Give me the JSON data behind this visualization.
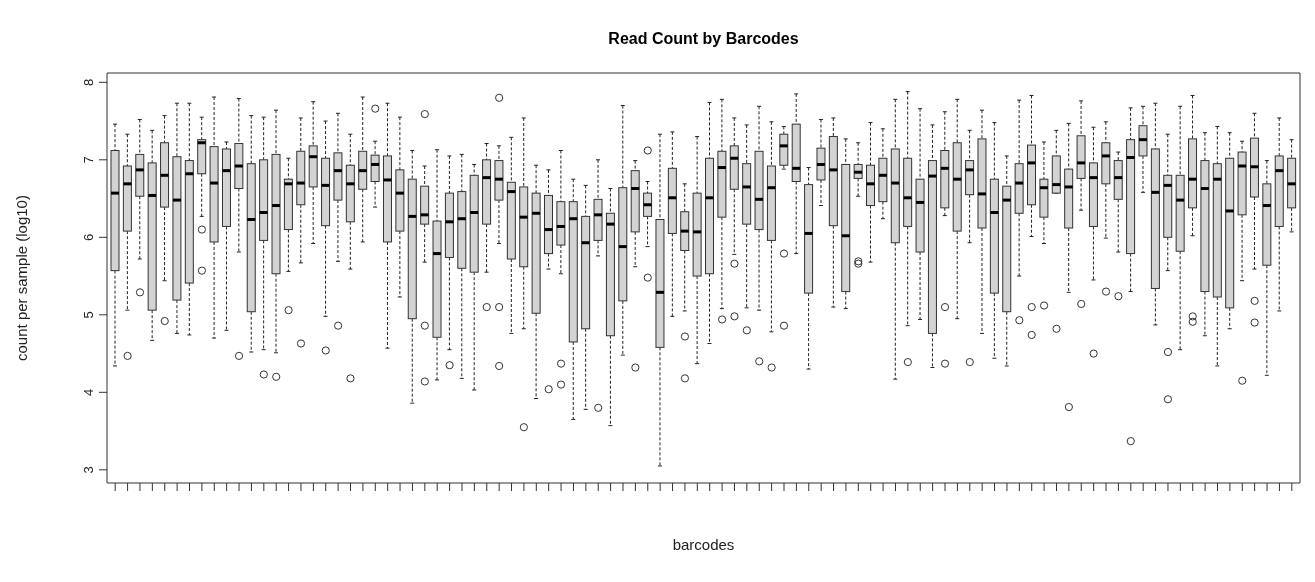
{
  "chart_data": {
    "type": "box",
    "title": "Read Count by Barcodes",
    "xlabel": "barcodes",
    "ylabel": "count per sample (log10)",
    "color": "#d3d3d3",
    "tick_labels": "y",
    "categories": [
      null,
      null,
      null,
      null,
      null,
      null,
      null,
      null,
      null,
      null,
      null,
      null,
      null,
      null,
      null,
      null,
      null,
      null,
      null,
      null,
      null,
      null,
      null,
      null,
      null,
      null,
      null,
      null,
      null,
      null,
      null,
      null,
      null,
      null,
      null,
      null,
      null,
      null,
      null,
      null,
      null,
      null,
      null,
      null,
      null,
      null,
      null,
      null,
      null,
      null,
      null,
      null,
      null,
      null,
      null,
      null,
      null,
      null,
      null,
      null,
      null,
      null,
      null,
      null,
      null,
      null,
      null,
      null,
      null,
      null,
      null,
      null,
      null,
      null,
      null,
      null,
      null,
      null,
      null,
      null,
      null,
      null,
      null,
      null,
      null,
      null,
      null,
      null,
      null,
      null,
      null,
      null,
      null,
      null,
      null,
      null
    ],
    "ylim": [
      2.83,
      8.12
    ],
    "yticks": [
      3,
      4,
      5,
      6,
      7,
      8
    ],
    "boxes": [
      {
        "low": 4.34,
        "q1": 5.57,
        "median": 6.57,
        "q3": 7.12,
        "high": 7.46
      },
      {
        "low": 5.06,
        "q1": 6.08,
        "median": 6.69,
        "q3": 6.92,
        "high": 7.33,
        "outliers": [
          4.47
        ]
      },
      {
        "low": 5.72,
        "q1": 6.53,
        "median": 6.87,
        "q3": 7.07,
        "high": 7.52,
        "outliers": [
          5.29
        ]
      },
      {
        "low": 4.67,
        "q1": 5.06,
        "median": 6.54,
        "q3": 6.96,
        "high": 7.38
      },
      {
        "low": 5.44,
        "q1": 6.39,
        "median": 6.8,
        "q3": 7.22,
        "high": 7.57,
        "outliers": [
          4.92
        ]
      },
      {
        "low": 4.76,
        "q1": 5.19,
        "median": 6.48,
        "q3": 7.04,
        "high": 7.73
      },
      {
        "low": 4.74,
        "q1": 5.41,
        "median": 6.82,
        "q3": 6.99,
        "high": 7.73
      },
      {
        "low": 6.27,
        "q1": 6.82,
        "median": 7.22,
        "q3": 7.26,
        "high": 7.55,
        "outliers": [
          6.1,
          5.57
        ]
      },
      {
        "low": 4.7,
        "q1": 5.94,
        "median": 6.7,
        "q3": 7.17,
        "high": 7.81
      },
      {
        "low": 4.8,
        "q1": 6.14,
        "median": 6.86,
        "q3": 7.14,
        "high": 7.23
      },
      {
        "low": 5.81,
        "q1": 6.63,
        "median": 6.92,
        "q3": 7.21,
        "high": 7.79,
        "outliers": [
          4.47
        ]
      },
      {
        "low": 4.52,
        "q1": 5.04,
        "median": 6.23,
        "q3": 6.95,
        "high": 7.57
      },
      {
        "low": 4.55,
        "q1": 5.96,
        "median": 6.32,
        "q3": 7.0,
        "high": 7.55,
        "outliers": [
          4.23
        ]
      },
      {
        "low": 4.51,
        "q1": 5.53,
        "median": 6.41,
        "q3": 7.07,
        "high": 7.64,
        "outliers": [
          4.2
        ]
      },
      {
        "low": 5.56,
        "q1": 6.1,
        "median": 6.69,
        "q3": 6.75,
        "high": 7.02,
        "outliers": [
          5.06
        ]
      },
      {
        "low": 5.67,
        "q1": 6.42,
        "median": 6.7,
        "q3": 7.11,
        "high": 7.54,
        "outliers": [
          4.63
        ]
      },
      {
        "low": 5.92,
        "q1": 6.65,
        "median": 7.04,
        "q3": 7.18,
        "high": 7.75
      },
      {
        "low": 4.98,
        "q1": 6.15,
        "median": 6.67,
        "q3": 7.02,
        "high": 7.5,
        "outliers": [
          4.54
        ]
      },
      {
        "low": 5.69,
        "q1": 6.48,
        "median": 6.86,
        "q3": 7.09,
        "high": 7.6,
        "outliers": [
          4.86
        ]
      },
      {
        "low": 5.59,
        "q1": 6.2,
        "median": 6.69,
        "q3": 6.93,
        "high": 7.33,
        "outliers": [
          4.18
        ]
      },
      {
        "low": 5.94,
        "q1": 6.62,
        "median": 6.86,
        "q3": 7.11,
        "high": 7.81
      },
      {
        "low": 6.39,
        "q1": 6.72,
        "median": 6.94,
        "q3": 7.06,
        "high": 7.24,
        "outliers": [
          7.66
        ]
      },
      {
        "low": 4.57,
        "q1": 5.94,
        "median": 6.74,
        "q3": 7.05,
        "high": 7.73
      },
      {
        "low": 5.23,
        "q1": 6.08,
        "median": 6.57,
        "q3": 6.87,
        "high": 7.55
      },
      {
        "low": 3.86,
        "q1": 4.95,
        "median": 6.27,
        "q3": 6.75,
        "high": 7.12
      },
      {
        "low": 5.68,
        "q1": 6.17,
        "median": 6.29,
        "q3": 6.66,
        "high": 6.92,
        "outliers": [
          7.59,
          4.86,
          4.14
        ]
      },
      {
        "low": 4.16,
        "q1": 4.71,
        "median": 5.79,
        "q3": 6.21,
        "high": 7.13
      },
      {
        "low": 4.55,
        "q1": 5.74,
        "median": 6.2,
        "q3": 6.57,
        "high": 7.05,
        "outliers": [
          4.35
        ]
      },
      {
        "low": 4.18,
        "q1": 5.6,
        "median": 6.24,
        "q3": 6.59,
        "high": 7.07
      },
      {
        "low": 4.03,
        "q1": 5.55,
        "median": 6.32,
        "q3": 6.8,
        "high": 6.94
      },
      {
        "low": 5.55,
        "q1": 6.17,
        "median": 6.77,
        "q3": 7.0,
        "high": 7.21,
        "outliers": [
          5.1
        ]
      },
      {
        "low": 5.92,
        "q1": 6.48,
        "median": 6.75,
        "q3": 6.99,
        "high": 7.18,
        "outliers": [
          7.8,
          5.1,
          4.34
        ]
      },
      {
        "low": 4.76,
        "q1": 5.72,
        "median": 6.59,
        "q3": 6.71,
        "high": 7.29
      },
      {
        "low": 4.82,
        "q1": 5.62,
        "median": 6.26,
        "q3": 6.65,
        "high": 7.54,
        "outliers": [
          3.55
        ]
      },
      {
        "low": 3.92,
        "q1": 5.02,
        "median": 6.31,
        "q3": 6.57,
        "high": 6.93
      },
      {
        "low": 5.59,
        "q1": 5.79,
        "median": 6.1,
        "q3": 6.54,
        "high": 6.87,
        "outliers": [
          4.04
        ]
      },
      {
        "low": 5.53,
        "q1": 5.9,
        "median": 6.14,
        "q3": 6.46,
        "high": 7.12,
        "outliers": [
          4.37,
          4.1
        ]
      },
      {
        "low": 3.65,
        "q1": 4.65,
        "median": 6.24,
        "q3": 6.46,
        "high": 6.75
      },
      {
        "low": 3.78,
        "q1": 4.82,
        "median": 5.93,
        "q3": 6.27,
        "high": 6.67
      },
      {
        "low": 5.76,
        "q1": 5.96,
        "median": 6.29,
        "q3": 6.49,
        "high": 7.0,
        "outliers": [
          3.8
        ]
      },
      {
        "low": 3.57,
        "q1": 4.73,
        "median": 6.17,
        "q3": 6.31,
        "high": 6.63
      },
      {
        "low": 4.48,
        "q1": 5.18,
        "median": 5.88,
        "q3": 6.64,
        "high": 7.7
      },
      {
        "low": 5.62,
        "q1": 6.07,
        "median": 6.63,
        "q3": 6.86,
        "high": 6.99,
        "outliers": [
          4.32
        ]
      },
      {
        "low": 5.88,
        "q1": 6.27,
        "median": 6.42,
        "q3": 6.57,
        "high": 6.72,
        "outliers": [
          7.12,
          5.48
        ]
      },
      {
        "low": 3.05,
        "q1": 4.58,
        "median": 5.29,
        "q3": 6.23,
        "high": 7.33
      },
      {
        "low": 4.98,
        "q1": 6.05,
        "median": 6.51,
        "q3": 6.89,
        "high": 7.36
      },
      {
        "low": 5.05,
        "q1": 5.83,
        "median": 6.08,
        "q3": 6.33,
        "high": 6.69,
        "outliers": [
          4.72,
          4.18
        ]
      },
      {
        "low": 4.37,
        "q1": 5.5,
        "median": 6.07,
        "q3": 6.57,
        "high": 7.3
      },
      {
        "low": 4.63,
        "q1": 5.53,
        "median": 6.51,
        "q3": 7.02,
        "high": 7.74
      },
      {
        "low": 5.08,
        "q1": 6.26,
        "median": 6.9,
        "q3": 7.11,
        "high": 7.78,
        "outliers": [
          4.94
        ]
      },
      {
        "low": 5.78,
        "q1": 6.62,
        "median": 7.02,
        "q3": 7.18,
        "high": 7.54,
        "outliers": [
          5.66,
          4.98
        ]
      },
      {
        "low": 5.09,
        "q1": 6.17,
        "median": 6.65,
        "q3": 6.95,
        "high": 7.45,
        "outliers": [
          4.8
        ]
      },
      {
        "low": 5.06,
        "q1": 6.1,
        "median": 6.49,
        "q3": 7.11,
        "high": 7.69,
        "outliers": [
          4.4
        ]
      },
      {
        "low": 4.78,
        "q1": 5.96,
        "median": 6.64,
        "q3": 6.92,
        "high": 7.49,
        "outliers": [
          4.32
        ]
      },
      {
        "low": 6.88,
        "q1": 6.93,
        "median": 7.18,
        "q3": 7.33,
        "high": 7.43,
        "outliers": [
          5.79,
          4.86
        ]
      },
      {
        "low": 5.79,
        "q1": 6.72,
        "median": 6.89,
        "q3": 7.46,
        "high": 7.85
      },
      {
        "low": 4.3,
        "q1": 5.28,
        "median": 6.05,
        "q3": 6.68,
        "high": 6.9
      },
      {
        "low": 6.41,
        "q1": 6.74,
        "median": 6.94,
        "q3": 7.15,
        "high": 7.52
      },
      {
        "low": 5.1,
        "q1": 6.15,
        "median": 6.87,
        "q3": 7.3,
        "high": 7.54
      },
      {
        "low": 5.08,
        "q1": 5.3,
        "median": 6.02,
        "q3": 6.94,
        "high": 7.27
      },
      {
        "low": 6.53,
        "q1": 6.76,
        "median": 6.84,
        "q3": 6.94,
        "high": 7.22,
        "outliers": [
          5.69,
          5.66
        ]
      },
      {
        "low": 5.68,
        "q1": 6.41,
        "median": 6.69,
        "q3": 6.93,
        "high": 7.48
      },
      {
        "low": 6.24,
        "q1": 6.46,
        "median": 6.8,
        "q3": 7.02,
        "high": 7.4
      },
      {
        "low": 4.17,
        "q1": 5.93,
        "median": 6.7,
        "q3": 7.14,
        "high": 7.78
      },
      {
        "low": 4.86,
        "q1": 6.14,
        "median": 6.51,
        "q3": 7.02,
        "high": 7.88,
        "outliers": [
          4.39
        ]
      },
      {
        "low": 4.94,
        "q1": 5.81,
        "median": 6.45,
        "q3": 6.75,
        "high": 7.66
      },
      {
        "low": 4.32,
        "q1": 4.76,
        "median": 6.79,
        "q3": 6.99,
        "high": 7.45
      },
      {
        "low": 6.28,
        "q1": 6.38,
        "median": 6.89,
        "q3": 7.12,
        "high": 7.62,
        "outliers": [
          5.1,
          4.37
        ]
      },
      {
        "low": 4.95,
        "q1": 6.08,
        "median": 6.75,
        "q3": 7.22,
        "high": 7.78
      },
      {
        "low": 5.93,
        "q1": 6.55,
        "median": 6.87,
        "q3": 6.99,
        "high": 7.38,
        "outliers": [
          4.39
        ]
      },
      {
        "low": 4.76,
        "q1": 6.12,
        "median": 6.56,
        "q3": 7.27,
        "high": 7.64
      },
      {
        "low": 4.44,
        "q1": 5.28,
        "median": 6.32,
        "q3": 6.75,
        "high": 7.48
      },
      {
        "low": 4.34,
        "q1": 5.04,
        "median": 6.48,
        "q3": 6.66,
        "high": 7.05
      },
      {
        "low": 5.5,
        "q1": 6.31,
        "median": 6.7,
        "q3": 6.95,
        "high": 7.77,
        "outliers": [
          4.93
        ]
      },
      {
        "low": 6.01,
        "q1": 6.42,
        "median": 6.96,
        "q3": 7.19,
        "high": 7.83,
        "outliers": [
          5.1,
          4.74
        ]
      },
      {
        "low": 5.92,
        "q1": 6.26,
        "median": 6.64,
        "q3": 6.75,
        "high": 7.23,
        "outliers": [
          5.12
        ]
      },
      {
        "low": 6.57,
        "q1": 6.57,
        "median": 6.68,
        "q3": 7.05,
        "high": 7.38,
        "outliers": [
          4.82
        ]
      },
      {
        "low": 5.29,
        "q1": 6.12,
        "median": 6.65,
        "q3": 6.88,
        "high": 7.47,
        "outliers": [
          3.81
        ]
      },
      {
        "low": 6.35,
        "q1": 6.76,
        "median": 6.96,
        "q3": 7.31,
        "high": 7.76,
        "outliers": [
          5.14
        ]
      },
      {
        "low": 5.45,
        "q1": 6.14,
        "median": 6.77,
        "q3": 6.96,
        "high": 7.42,
        "outliers": [
          4.5
        ]
      },
      {
        "low": 5.99,
        "q1": 6.69,
        "median": 7.05,
        "q3": 7.22,
        "high": 7.49,
        "outliers": [
          5.3
        ]
      },
      {
        "low": 5.81,
        "q1": 6.49,
        "median": 6.77,
        "q3": 6.99,
        "high": 7.1,
        "outliers": [
          5.24
        ]
      },
      {
        "low": 5.3,
        "q1": 5.79,
        "median": 7.03,
        "q3": 7.26,
        "high": 7.67,
        "outliers": [
          3.37
        ]
      },
      {
        "low": 6.58,
        "q1": 7.05,
        "median": 7.26,
        "q3": 7.44,
        "high": 7.69
      },
      {
        "low": 4.87,
        "q1": 5.34,
        "median": 6.58,
        "q3": 7.14,
        "high": 7.73
      },
      {
        "low": 5.57,
        "q1": 6.0,
        "median": 6.67,
        "q3": 6.8,
        "high": 7.33,
        "outliers": [
          4.52,
          3.91
        ]
      },
      {
        "low": 4.55,
        "q1": 5.82,
        "median": 6.48,
        "q3": 6.8,
        "high": 7.69
      },
      {
        "low": 6.02,
        "q1": 6.38,
        "median": 6.75,
        "q3": 7.27,
        "high": 7.83,
        "outliers": [
          4.98,
          4.91
        ]
      },
      {
        "low": 4.73,
        "q1": 5.3,
        "median": 6.63,
        "q3": 6.99,
        "high": 7.35
      },
      {
        "low": 4.34,
        "q1": 5.23,
        "median": 6.75,
        "q3": 6.95,
        "high": 7.43
      },
      {
        "low": 4.82,
        "q1": 5.09,
        "median": 6.34,
        "q3": 7.02,
        "high": 7.35
      },
      {
        "low": 5.44,
        "q1": 6.29,
        "median": 6.92,
        "q3": 7.1,
        "high": 7.24,
        "outliers": [
          4.15
        ]
      },
      {
        "low": 5.59,
        "q1": 6.52,
        "median": 6.91,
        "q3": 7.28,
        "high": 7.6,
        "outliers": [
          5.18,
          4.9
        ]
      },
      {
        "low": 4.22,
        "q1": 5.64,
        "median": 6.41,
        "q3": 6.69,
        "high": 6.99
      },
      {
        "low": 5.05,
        "q1": 6.14,
        "median": 6.86,
        "q3": 7.05,
        "high": 7.54
      },
      {
        "low": 6.07,
        "q1": 6.38,
        "median": 6.69,
        "q3": 7.02,
        "high": 7.26
      }
    ]
  }
}
